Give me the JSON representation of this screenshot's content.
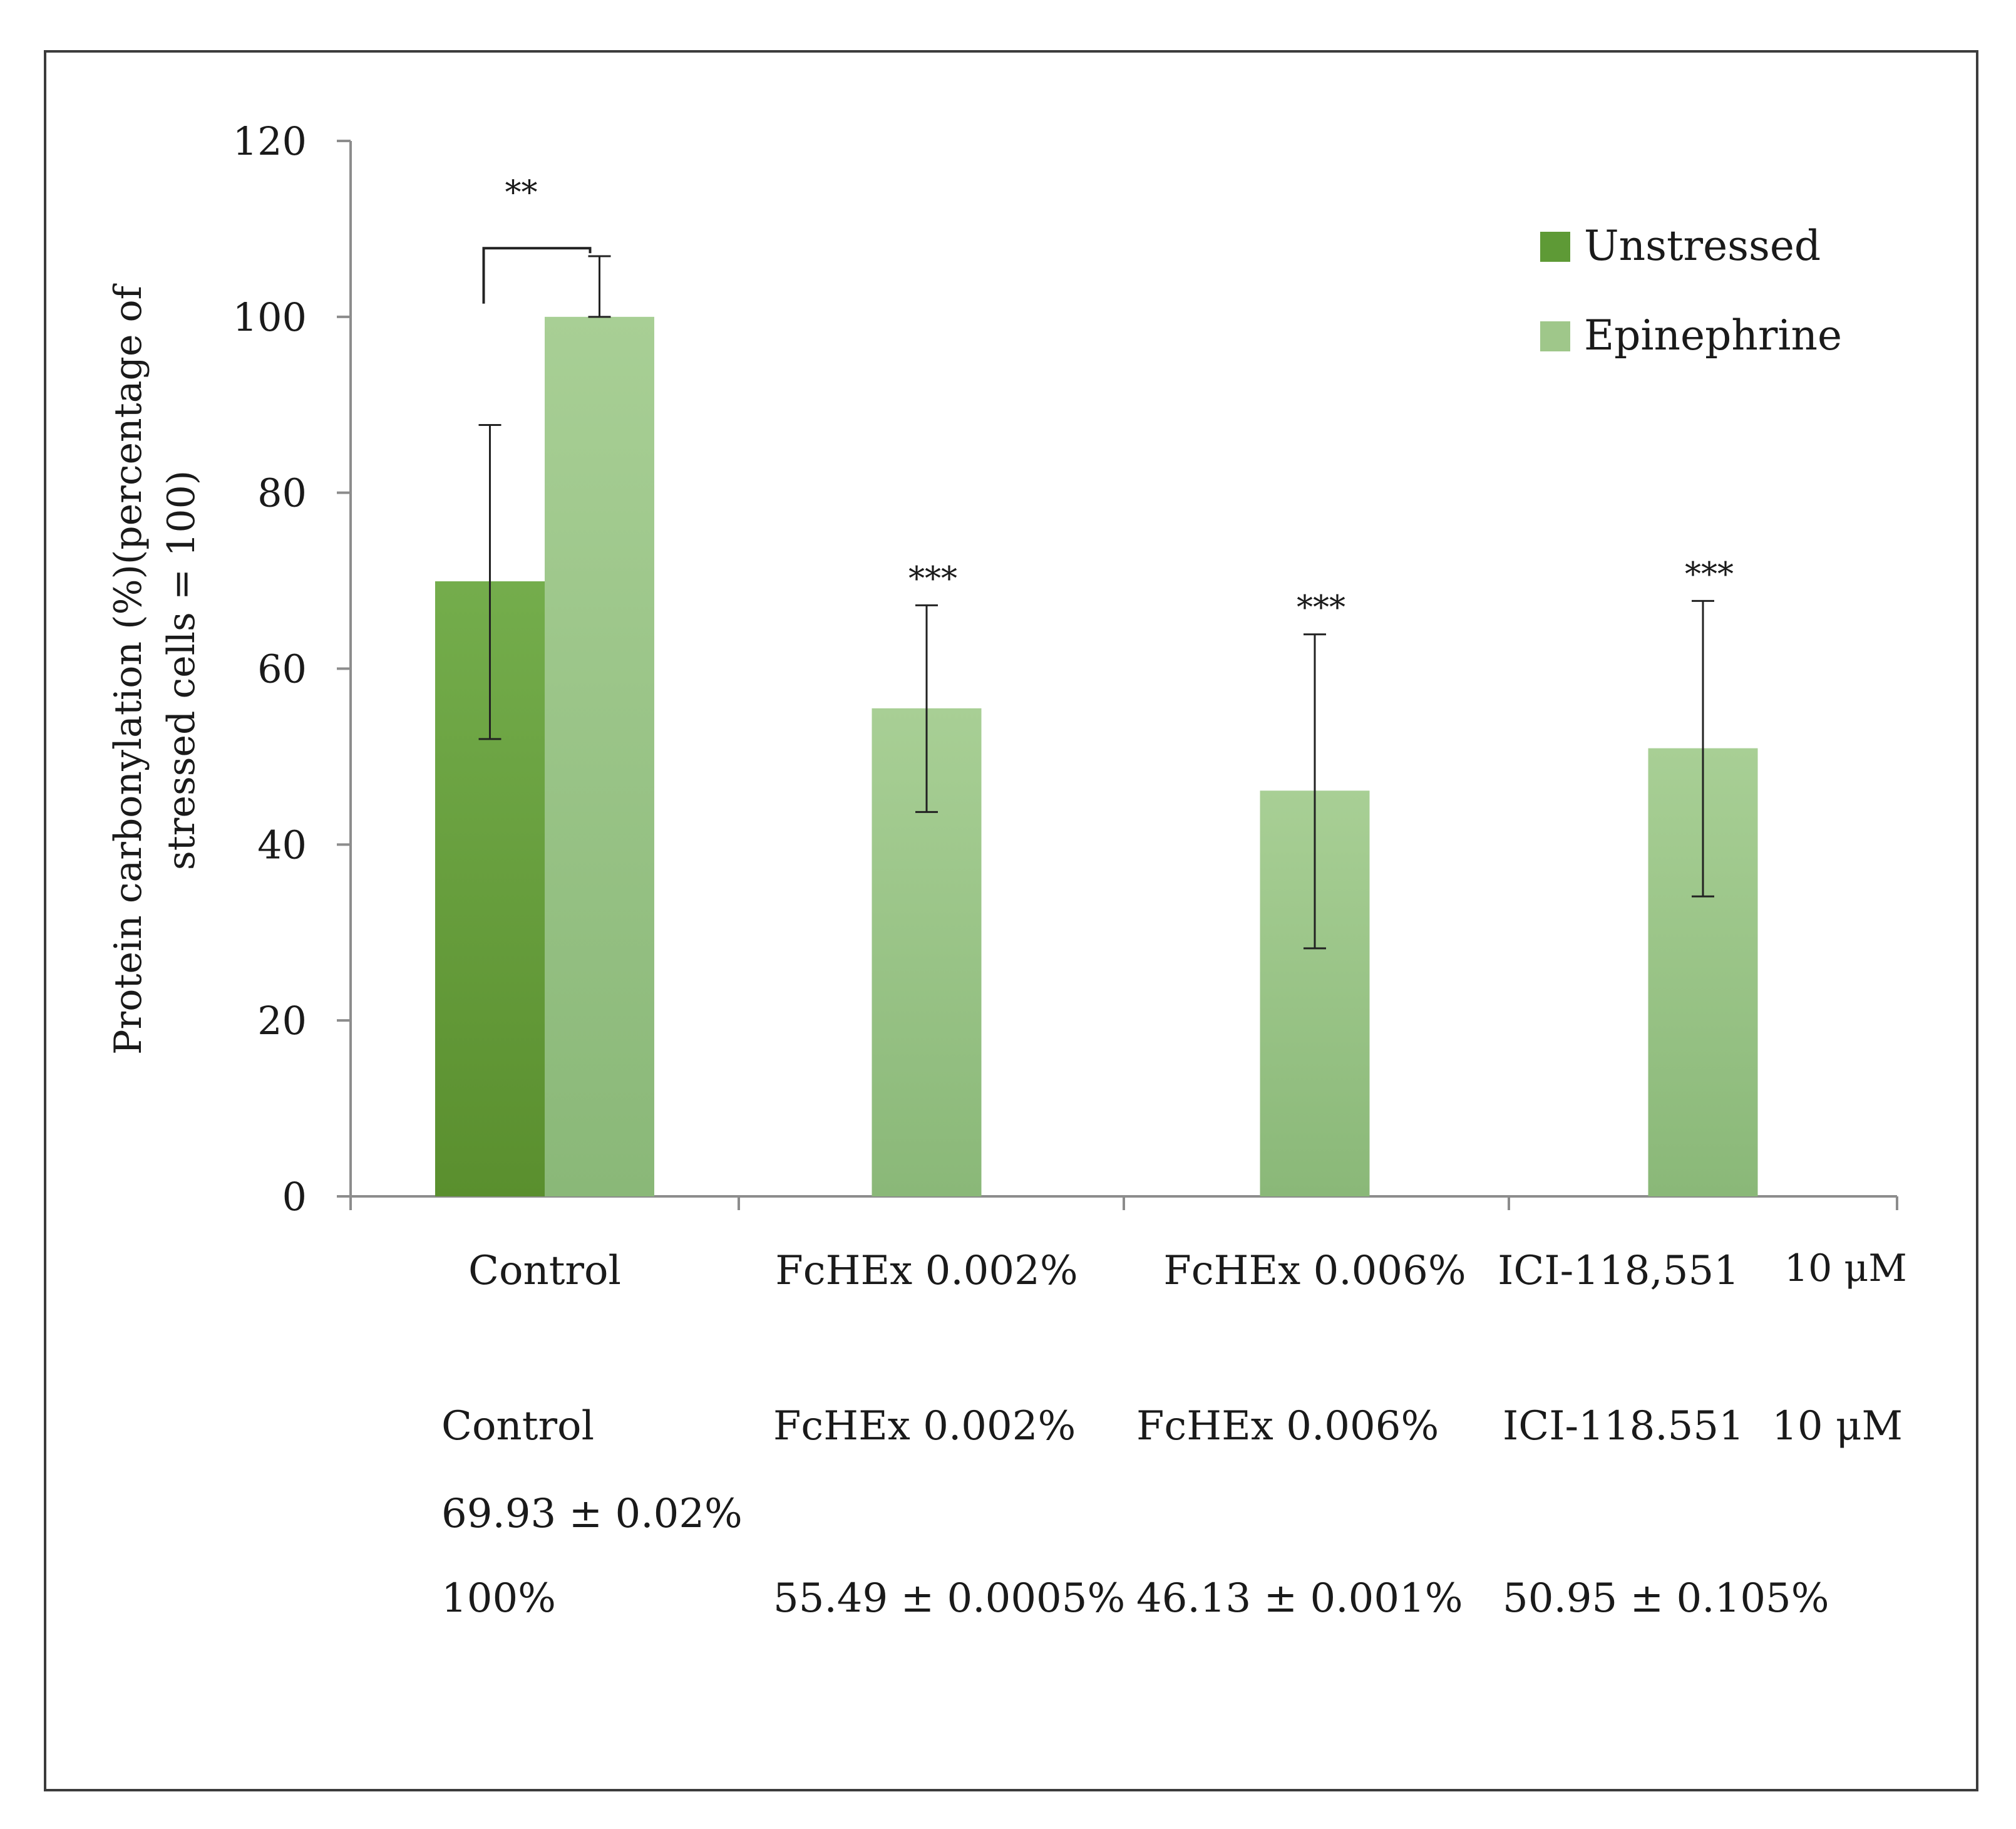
{
  "chart_data": {
    "type": "bar",
    "title": "",
    "xlabel": "",
    "ylabel": "Protein carbonylation (%)(percentage of stressed cells = 100)",
    "ylabel_lines": [
      "Protein carbonylation (%)(percentage of",
      "stressed cells = 100)"
    ],
    "ylim": [
      0,
      120
    ],
    "yticks": [
      0,
      20,
      40,
      60,
      80,
      100,
      120
    ],
    "grid": false,
    "legend_position": "top-right",
    "categories": [
      "Control",
      "FcHEx 0.002%",
      "FcHEx 0.006%",
      "ICI-118,551"
    ],
    "category_suffix": [
      "",
      "",
      "",
      "10 μM"
    ],
    "series": [
      {
        "name": "Unstressed",
        "color": "#5e9a36",
        "values": [
          69.93,
          null,
          null,
          null
        ],
        "error_low": [
          52,
          null,
          null,
          null
        ],
        "error_high": [
          87.7,
          null,
          null,
          null
        ]
      },
      {
        "name": "Epinephrine",
        "color": "#9fc78a",
        "values": [
          100,
          55.49,
          46.13,
          50.95
        ],
        "error_low": [
          100,
          43.7,
          28.2,
          34.1
        ],
        "error_high": [
          106.9,
          67.2,
          63.9,
          67.7
        ]
      }
    ],
    "annotations": [
      {
        "category": "Control",
        "text": "**",
        "bracket": true
      },
      {
        "category": "FcHEx 0.002%",
        "text": "***"
      },
      {
        "category": "FcHEx 0.006%",
        "text": "***"
      },
      {
        "category": "ICI-118,551",
        "text": "***"
      }
    ]
  },
  "table": {
    "headers": [
      "Control",
      "FcHEx 0.002%",
      "FcHEx 0.006%",
      "ICI-118.551"
    ],
    "ici_suffix": "10 μM",
    "unstressed_row": [
      "69.93 ± 0.02%",
      "",
      "",
      ""
    ],
    "epinephrine_row": [
      "100%",
      "55.49 ± 0.0005%",
      "46.13 ± 0.001%",
      "50.95 ± 0.105%"
    ]
  }
}
